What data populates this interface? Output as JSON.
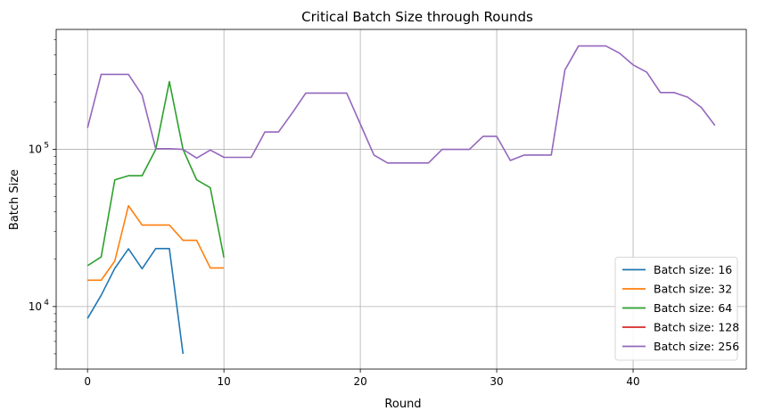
{
  "chart_data": {
    "type": "line",
    "title": "Critical Batch Size through Rounds",
    "xlabel": "Round",
    "ylabel": "Batch Size",
    "xlim": [
      -2.3,
      48.3
    ],
    "ylim": [
      4000,
      580000
    ],
    "yscale": "log",
    "grid": true,
    "legend_position": "lower-right",
    "x_ticks": [
      0,
      10,
      20,
      30,
      40
    ],
    "y_ticks": [
      {
        "value": 10000,
        "base": "10",
        "exp": "4"
      },
      {
        "value": 100000,
        "base": "10",
        "exp": "5"
      }
    ],
    "series": [
      {
        "name": "Batch size: 16",
        "color": "#1f77b4",
        "x": [
          0,
          1,
          2,
          3,
          4,
          5,
          6,
          7
        ],
        "y": [
          8400,
          11800,
          17500,
          23300,
          17400,
          23400,
          23400,
          5000
        ]
      },
      {
        "name": "Batch size: 32",
        "color": "#ff7f0e",
        "x": [
          0,
          1,
          2,
          3,
          4,
          5,
          6,
          7,
          8,
          9,
          10
        ],
        "y": [
          14700,
          14700,
          19500,
          43800,
          33000,
          33000,
          33000,
          26400,
          26400,
          17600,
          17600
        ]
      },
      {
        "name": "Batch size: 64",
        "color": "#2ca02c",
        "x": [
          0,
          1,
          2,
          3,
          4,
          5,
          6,
          7,
          8,
          9,
          10
        ],
        "y": [
          18200,
          20700,
          64000,
          68000,
          68000,
          100000,
          270000,
          100000,
          64000,
          57000,
          20500
        ]
      },
      {
        "name": "Batch size: 128",
        "color": "#d62728",
        "x": [],
        "y": []
      },
      {
        "name": "Batch size: 256",
        "color": "#9467bd",
        "x": [
          0,
          1,
          2,
          3,
          4,
          5,
          6,
          7,
          8,
          9,
          10,
          11,
          12,
          13,
          14,
          15,
          16,
          17,
          18,
          19,
          20,
          21,
          22,
          23,
          24,
          25,
          26,
          27,
          28,
          29,
          30,
          31,
          32,
          33,
          34,
          35,
          36,
          37,
          38,
          39,
          40,
          41,
          42,
          43,
          44,
          45,
          46
        ],
        "y": [
          137000,
          300000,
          300000,
          300000,
          222000,
          101000,
          101000,
          100000,
          88000,
          99000,
          89000,
          89000,
          89000,
          129000,
          129000,
          170000,
          228000,
          228000,
          228000,
          228000,
          145000,
          92000,
          82000,
          82000,
          82000,
          82000,
          100000,
          100000,
          100000,
          121000,
          121000,
          85000,
          92000,
          92000,
          92000,
          320000,
          455000,
          455000,
          455000,
          410000,
          345000,
          310000,
          230000,
          230000,
          215000,
          185000,
          142000
        ]
      }
    ]
  }
}
